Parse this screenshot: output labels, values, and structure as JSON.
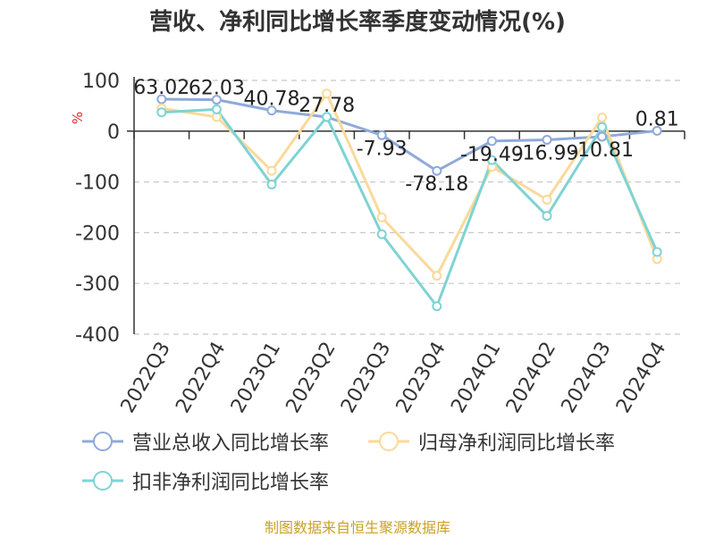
{
  "chart_data": {
    "type": "line",
    "title": "营收、净利同比增长率季度变动情况(%)",
    "ylabel": "%",
    "categories": [
      "2022Q3",
      "2022Q4",
      "2023Q1",
      "2023Q2",
      "2023Q3",
      "2023Q4",
      "2024Q1",
      "2024Q2",
      "2024Q3",
      "2024Q4"
    ],
    "ylim": [
      -400,
      100
    ],
    "yticks": [
      100,
      0,
      -100,
      -200,
      -300,
      -400
    ],
    "grid": true,
    "legend_position": "bottom",
    "series": [
      {
        "name": "营业总收入同比增长率",
        "color": "#8eaad8",
        "values": [
          63.02,
          62.03,
          40.78,
          27.78,
          -7.93,
          -78.18,
          -19.49,
          -16.99,
          -10.81,
          0.81
        ],
        "labels": [
          "63.02",
          "62.03",
          "40.78",
          "27.78",
          "-7.93",
          "-78.18",
          "-19.49",
          "-16.99",
          "-10.81",
          "0.81"
        ]
      },
      {
        "name": "归母净利润同比增长率",
        "color": "#fbd99a",
        "values": [
          45,
          28,
          -78,
          74,
          -170,
          -285,
          -70,
          -135,
          27,
          -252
        ]
      },
      {
        "name": "扣非净利润同比增长率",
        "color": "#7fd3d4",
        "values": [
          37,
          43,
          -105,
          28,
          -203,
          -345,
          -57,
          -167,
          8,
          -238
        ]
      }
    ]
  },
  "footer": {
    "source": "制图数据来自恒生聚源数据库"
  }
}
